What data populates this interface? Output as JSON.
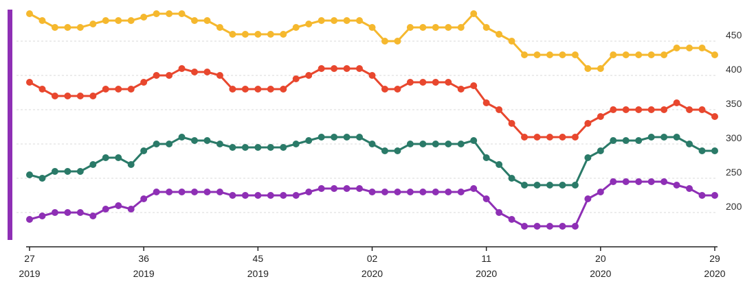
{
  "chart_data": {
    "type": "line",
    "title": "",
    "xlabel": "",
    "ylabel": "",
    "ylim": [
      160,
      500
    ],
    "y_ticks": [
      200,
      250,
      300,
      350,
      400,
      450
    ],
    "grid": true,
    "x_tick_labels": [
      {
        "index": 0,
        "week": "27",
        "year": "2019"
      },
      {
        "index": 9,
        "week": "36",
        "year": "2019"
      },
      {
        "index": 18,
        "week": "45",
        "year": "2019"
      },
      {
        "index": 27,
        "week": "02",
        "year": "2020"
      },
      {
        "index": 36,
        "week": "11",
        "year": "2020"
      },
      {
        "index": 45,
        "week": "20",
        "year": "2020"
      },
      {
        "index": 54,
        "week": "29",
        "year": "2020"
      }
    ],
    "series": [
      {
        "color": "#f5b82e",
        "values": [
          490,
          480,
          470,
          470,
          470,
          475,
          480,
          480,
          480,
          485,
          490,
          490,
          490,
          480,
          480,
          470,
          460,
          460,
          460,
          460,
          460,
          470,
          475,
          480,
          480,
          480,
          480,
          470,
          450,
          450,
          470,
          470,
          470,
          470,
          470,
          490,
          470,
          460,
          450,
          430,
          430,
          430,
          430,
          430,
          410,
          410,
          430,
          430,
          430,
          430,
          430,
          440,
          440,
          440,
          430
        ]
      },
      {
        "color": "#e8472e",
        "values": [
          390,
          380,
          370,
          370,
          370,
          370,
          380,
          380,
          380,
          390,
          400,
          400,
          410,
          405,
          405,
          400,
          380,
          380,
          380,
          380,
          380,
          395,
          400,
          410,
          410,
          410,
          410,
          400,
          380,
          380,
          390,
          390,
          390,
          390,
          380,
          385,
          360,
          350,
          330,
          310,
          310,
          310,
          310,
          310,
          330,
          340,
          350,
          350,
          350,
          350,
          350,
          360,
          350,
          350,
          340
        ]
      },
      {
        "color": "#2a7a68",
        "values": [
          255,
          250,
          260,
          260,
          260,
          270,
          280,
          280,
          270,
          290,
          300,
          300,
          310,
          305,
          305,
          300,
          295,
          295,
          295,
          295,
          295,
          300,
          305,
          310,
          310,
          310,
          310,
          300,
          290,
          290,
          300,
          300,
          300,
          300,
          300,
          305,
          280,
          270,
          250,
          240,
          240,
          240,
          240,
          240,
          280,
          290,
          305,
          305,
          305,
          310,
          310,
          310,
          300,
          290,
          290
        ]
      },
      {
        "color": "#8e2fb5",
        "values": [
          190,
          195,
          200,
          200,
          200,
          195,
          205,
          210,
          205,
          220,
          230,
          230,
          230,
          230,
          230,
          230,
          225,
          225,
          225,
          225,
          225,
          225,
          230,
          235,
          235,
          235,
          235,
          230,
          230,
          230,
          230,
          230,
          230,
          230,
          230,
          235,
          220,
          200,
          190,
          180,
          180,
          180,
          180,
          180,
          220,
          230,
          245,
          245,
          245,
          245,
          245,
          240,
          235,
          225,
          225
        ]
      }
    ],
    "left_bar_color": "#8e2fb5"
  }
}
